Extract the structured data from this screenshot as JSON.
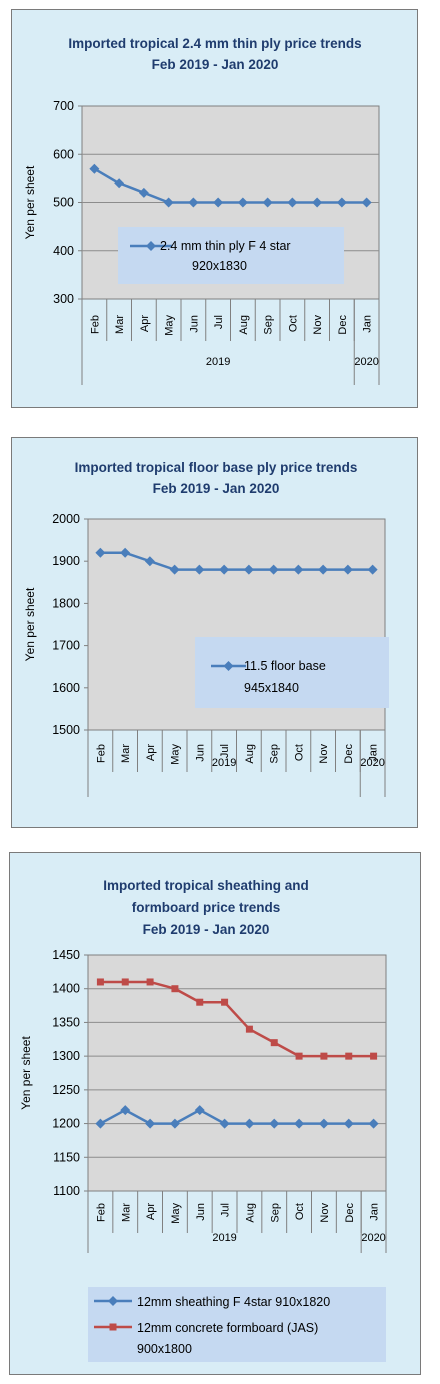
{
  "chart_data": [
    {
      "type": "line",
      "title": [
        "Imported tropical 2.4 mm thin ply price trends",
        "Feb 2019 - Jan 2020"
      ],
      "ylabel": "Yen per sheet",
      "ylim": [
        300,
        700
      ],
      "yticks": [
        300,
        400,
        500,
        600,
        700
      ],
      "categories": [
        "Feb",
        "Mar",
        "Apr",
        "May",
        "Jun",
        "Jul",
        "Aug",
        "Sep",
        "Oct",
        "Nov",
        "Dec",
        "Jan"
      ],
      "year_groups": [
        {
          "label": "2019",
          "span": 11
        },
        {
          "label": "2020",
          "span": 1
        }
      ],
      "grid": true,
      "legend_position": "center",
      "series": [
        {
          "name": [
            "2.4 mm thin ply F 4 star",
            "920x1830"
          ],
          "color": "#4a7ebb",
          "marker": "diamond",
          "values": [
            570,
            540,
            520,
            500,
            500,
            500,
            500,
            500,
            500,
            500,
            500,
            500
          ]
        }
      ]
    },
    {
      "type": "line",
      "title": [
        "Imported tropical floor base ply price trends",
        "Feb 2019 - Jan 2020"
      ],
      "ylabel": "Yen per sheet",
      "ylim": [
        1500,
        2000
      ],
      "yticks": [
        1500,
        1600,
        1700,
        1800,
        1900,
        2000
      ],
      "categories": [
        "Feb",
        "Mar",
        "Apr",
        "May",
        "Jun",
        "Jul",
        "Aug",
        "Sep",
        "Oct",
        "Nov",
        "Dec",
        "Jan"
      ],
      "year_groups": [
        {
          "label": "2019",
          "span": 11
        },
        {
          "label": "2020",
          "span": 1
        }
      ],
      "grid": false,
      "legend_position": "lower-right",
      "series": [
        {
          "name": [
            "11.5 floor base",
            "945x1840"
          ],
          "color": "#4a7ebb",
          "marker": "diamond",
          "values": [
            1920,
            1920,
            1900,
            1880,
            1880,
            1880,
            1880,
            1880,
            1880,
            1880,
            1880,
            1880
          ]
        }
      ]
    },
    {
      "type": "line",
      "title": [
        "Imported tropical sheathing and",
        "formboard price trends",
        "Feb 2019 - Jan 2020"
      ],
      "ylabel": "Yen per sheet",
      "ylim": [
        1100,
        1450
      ],
      "yticks": [
        1100,
        1150,
        1200,
        1250,
        1300,
        1350,
        1400,
        1450
      ],
      "categories": [
        "Feb",
        "Mar",
        "Apr",
        "May",
        "Jun",
        "Jul",
        "Aug",
        "Sep",
        "Oct",
        "Nov",
        "Dec",
        "Jan"
      ],
      "year_groups": [
        {
          "label": "2019",
          "span": 11
        },
        {
          "label": "2020",
          "span": 1
        }
      ],
      "grid": true,
      "legend_position": "bottom",
      "series": [
        {
          "name": [
            "12mm sheathing F 4star 910x1820"
          ],
          "color": "#4a7ebb",
          "marker": "diamond",
          "values": [
            1200,
            1220,
            1200,
            1200,
            1220,
            1200,
            1200,
            1200,
            1200,
            1200,
            1200,
            1200
          ]
        },
        {
          "name": [
            "12mm concrete formboard (JAS)",
            "900x1800"
          ],
          "color": "#be4b48",
          "marker": "square",
          "values": [
            1410,
            1410,
            1410,
            1400,
            1380,
            1380,
            1340,
            1320,
            1300,
            1300,
            1300,
            1300
          ]
        }
      ]
    }
  ]
}
